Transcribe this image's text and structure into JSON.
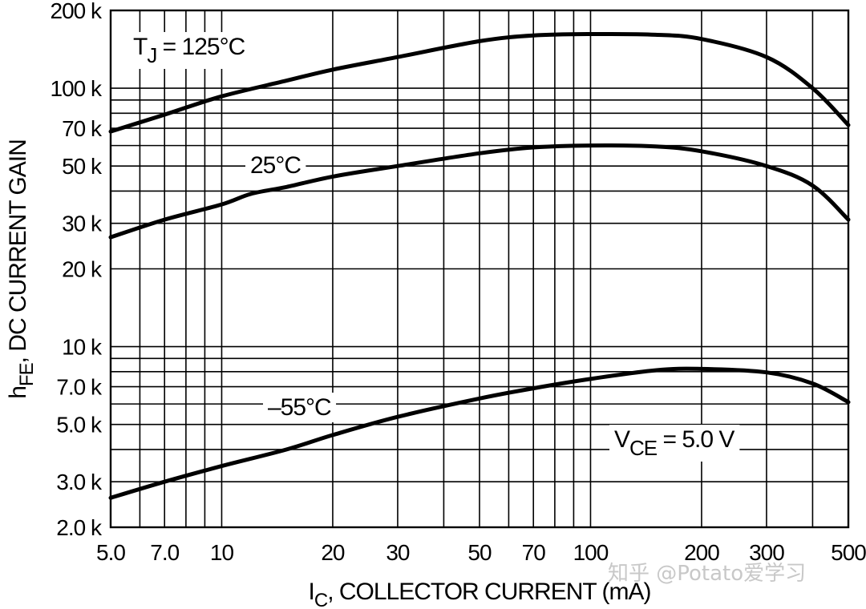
{
  "chart_data": {
    "type": "line",
    "xlabel": {
      "main": "I",
      "sub": "C",
      "rest": ", COLLECTOR CURRENT (mA)"
    },
    "ylabel": {
      "main": "h",
      "sub": "FE",
      "rest": ", DC CURRENT GAIN"
    },
    "x_scale": "log",
    "y_scale": "log",
    "xlim": [
      5,
      500
    ],
    "ylim": [
      2000,
      200000
    ],
    "grid": true,
    "x_ticks": [
      {
        "value": 5,
        "label": "5.0"
      },
      {
        "value": 7,
        "label": "7.0"
      },
      {
        "value": 10,
        "label": "10"
      },
      {
        "value": 20,
        "label": "20"
      },
      {
        "value": 30,
        "label": "30"
      },
      {
        "value": 50,
        "label": "50"
      },
      {
        "value": 70,
        "label": "70"
      },
      {
        "value": 100,
        "label": "100"
      },
      {
        "value": 200,
        "label": "200"
      },
      {
        "value": 300,
        "label": "300"
      },
      {
        "value": 500,
        "label": "500"
      }
    ],
    "x_gridlines": [
      5,
      6,
      7,
      8,
      9,
      10,
      20,
      30,
      40,
      50,
      60,
      70,
      80,
      90,
      100,
      200,
      300,
      400,
      500
    ],
    "y_ticks": [
      {
        "value": 2000,
        "label": "2.0 k"
      },
      {
        "value": 3000,
        "label": "3.0 k"
      },
      {
        "value": 5000,
        "label": "5.0 k"
      },
      {
        "value": 7000,
        "label": "7.0 k"
      },
      {
        "value": 10000,
        "label": "10 k"
      },
      {
        "value": 20000,
        "label": "20 k"
      },
      {
        "value": 30000,
        "label": "30 k"
      },
      {
        "value": 50000,
        "label": "50 k"
      },
      {
        "value": 70000,
        "label": "70 k"
      },
      {
        "value": 100000,
        "label": "100 k"
      },
      {
        "value": 200000,
        "label": "200 k"
      }
    ],
    "y_gridlines": [
      2000,
      3000,
      4000,
      5000,
      6000,
      7000,
      8000,
      9000,
      10000,
      20000,
      30000,
      40000,
      50000,
      60000,
      70000,
      80000,
      90000,
      100000,
      200000
    ],
    "series": [
      {
        "x": [
          5,
          7,
          10,
          15,
          20,
          30,
          50,
          70,
          100,
          150,
          200,
          300,
          400,
          500
        ],
        "y": [
          68000,
          79000,
          93000,
          107000,
          118000,
          132000,
          152000,
          160000,
          162000,
          161000,
          155000,
          132000,
          100000,
          72000
        ]
      },
      {
        "x": [
          5,
          7,
          10,
          12,
          15,
          20,
          30,
          50,
          70,
          100,
          150,
          200,
          300,
          400,
          500
        ],
        "y": [
          26500,
          31000,
          35500,
          39000,
          41500,
          45500,
          50000,
          56000,
          59000,
          60000,
          59500,
          57000,
          50000,
          42000,
          31000
        ]
      },
      {
        "x": [
          5,
          7,
          10,
          15,
          20,
          30,
          50,
          70,
          100,
          150,
          200,
          300,
          400,
          500
        ],
        "y": [
          2600,
          3000,
          3450,
          4000,
          4550,
          5350,
          6300,
          6900,
          7500,
          8100,
          8200,
          7950,
          7200,
          6100
        ]
      }
    ],
    "annotations": [
      {
        "id": "tj-125",
        "parts": [
          {
            "text": "T"
          },
          {
            "text": "J",
            "sub": true
          },
          {
            "text": " = 125°C"
          }
        ]
      },
      {
        "id": "t-25",
        "parts": [
          {
            "text": "25°C"
          }
        ]
      },
      {
        "id": "t-m55",
        "parts": [
          {
            "text": "–55°C"
          }
        ]
      },
      {
        "id": "vce",
        "parts": [
          {
            "text": "V"
          },
          {
            "text": "CE",
            "sub": true
          },
          {
            "text": " = 5.0 V"
          }
        ]
      }
    ]
  },
  "watermark": "知乎 @Potato爱学习"
}
